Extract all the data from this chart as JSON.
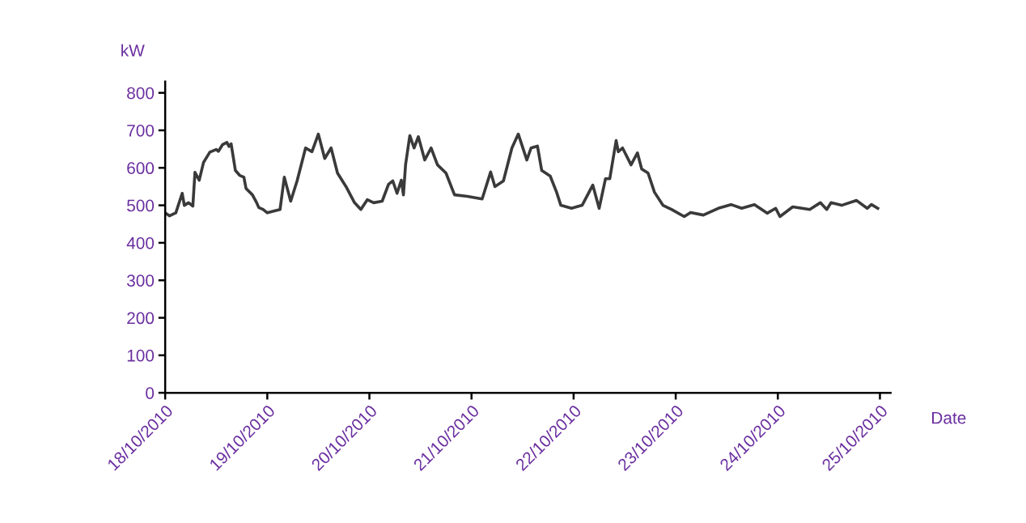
{
  "chart_data": {
    "type": "line",
    "xlabel": "Date",
    "ylabel": "kW",
    "x": [
      "2010-10-18T00:00",
      "2010-10-18T01:00",
      "2010-10-18T02:30",
      "2010-10-18T04:00",
      "2010-10-18T04:30",
      "2010-10-18T05:30",
      "2010-10-18T06:30",
      "2010-10-18T07:00",
      "2010-10-18T08:00",
      "2010-10-18T09:00",
      "2010-10-18T10:30",
      "2010-10-18T12:00",
      "2010-10-18T12:30",
      "2010-10-18T13:30",
      "2010-10-18T14:30",
      "2010-10-18T15:00",
      "2010-10-18T15:30",
      "2010-10-18T16:30",
      "2010-10-18T17:30",
      "2010-10-18T18:30",
      "2010-10-18T19:00",
      "2010-10-18T20:30",
      "2010-10-18T21:30",
      "2010-10-18T22:00",
      "2010-10-18T23:00",
      "2010-10-19T00:00",
      "2010-10-19T03:00",
      "2010-10-19T04:00",
      "2010-10-19T05:30",
      "2010-10-19T07:00",
      "2010-10-19T09:00",
      "2010-10-19T10:30",
      "2010-10-19T12:00",
      "2010-10-19T13:30",
      "2010-10-19T15:00",
      "2010-10-19T16:30",
      "2010-10-19T18:30",
      "2010-10-19T20:30",
      "2010-10-19T22:00",
      "2010-10-19T23:30",
      "2010-10-20T01:00",
      "2010-10-20T03:00",
      "2010-10-20T04:30",
      "2010-10-20T05:30",
      "2010-10-20T06:30",
      "2010-10-20T07:30",
      "2010-10-20T08:00",
      "2010-10-20T08:30",
      "2010-10-20T09:30",
      "2010-10-20T10:30",
      "2010-10-20T11:30",
      "2010-10-20T13:00",
      "2010-10-20T14:30",
      "2010-10-20T16:00",
      "2010-10-20T18:00",
      "2010-10-20T20:00",
      "2010-10-20T23:00",
      "2010-10-21T02:30",
      "2010-10-21T04:30",
      "2010-10-21T05:30",
      "2010-10-21T07:30",
      "2010-10-21T09:30",
      "2010-10-21T11:00",
      "2010-10-21T13:00",
      "2010-10-21T14:00",
      "2010-10-21T15:30",
      "2010-10-21T16:30",
      "2010-10-21T18:30",
      "2010-10-21T20:00",
      "2010-10-21T21:00",
      "2010-10-21T23:30",
      "2010-10-22T02:00",
      "2010-10-22T04:30",
      "2010-10-22T06:00",
      "2010-10-22T07:30",
      "2010-10-22T08:30",
      "2010-10-22T10:00",
      "2010-10-22T10:30",
      "2010-10-22T11:30",
      "2010-10-22T13:30",
      "2010-10-22T15:00",
      "2010-10-22T16:00",
      "2010-10-22T17:30",
      "2010-10-22T19:00",
      "2010-10-22T21:00",
      "2010-10-22T23:00",
      "2010-10-23T02:00",
      "2010-10-23T03:30",
      "2010-10-23T06:30",
      "2010-10-23T10:00",
      "2010-10-23T13:00",
      "2010-10-23T15:30",
      "2010-10-23T18:30",
      "2010-10-23T21:30",
      "2010-10-23T23:30",
      "2010-10-24T00:30",
      "2010-10-24T03:30",
      "2010-10-24T07:30",
      "2010-10-24T10:00",
      "2010-10-24T11:30",
      "2010-10-24T12:30",
      "2010-10-24T15:00",
      "2010-10-24T18:30",
      "2010-10-24T21:00",
      "2010-10-24T22:00",
      "2010-10-24T23:30"
    ],
    "series": [
      {
        "color": "#3a3a3a",
        "values": [
          480,
          472,
          480,
          532,
          500,
          507,
          498,
          588,
          567,
          614,
          642,
          649,
          644,
          662,
          668,
          657,
          664,
          593,
          580,
          575,
          545,
          528,
          507,
          494,
          489,
          480,
          489,
          575,
          511,
          565,
          653,
          643,
          690,
          625,
          653,
          586,
          550,
          507,
          489,
          515,
          507,
          511,
          556,
          565,
          532,
          567,
          528,
          608,
          686,
          653,
          683,
          621,
          653,
          608,
          586,
          528,
          524,
          517,
          589,
          550,
          565,
          653,
          690,
          621,
          653,
          658,
          593,
          578,
          535,
          500,
          492,
          500,
          554,
          492,
          571,
          571,
          673,
          643,
          653,
          608,
          640,
          597,
          586,
          535,
          500,
          489,
          470,
          481,
          474,
          492,
          502,
          492,
          502,
          479,
          492,
          470,
          496,
          489,
          507,
          489,
          507,
          500,
          513,
          492,
          502,
          492
        ]
      }
    ],
    "xlim": [
      "2010-10-18T00:00",
      "2010-10-25T02:30"
    ],
    "xticks": [
      {
        "value": "2010-10-18",
        "label": "18/10/2010"
      },
      {
        "value": "2010-10-19",
        "label": "19/10/2010"
      },
      {
        "value": "2010-10-20",
        "label": "20/10/2010"
      },
      {
        "value": "2010-10-21",
        "label": "21/10/2010"
      },
      {
        "value": "2010-10-22",
        "label": "22/10/2010"
      },
      {
        "value": "2010-10-23",
        "label": "23/10/2010"
      },
      {
        "value": "2010-10-24",
        "label": "24/10/2010"
      },
      {
        "value": "2010-10-25",
        "label": "25/10/2010"
      }
    ],
    "ylim": [
      0,
      830
    ],
    "yticks": [
      0,
      100,
      200,
      300,
      400,
      500,
      600,
      700,
      800
    ],
    "grid": false,
    "legend": false,
    "marker": "none",
    "line_style": "solid"
  }
}
